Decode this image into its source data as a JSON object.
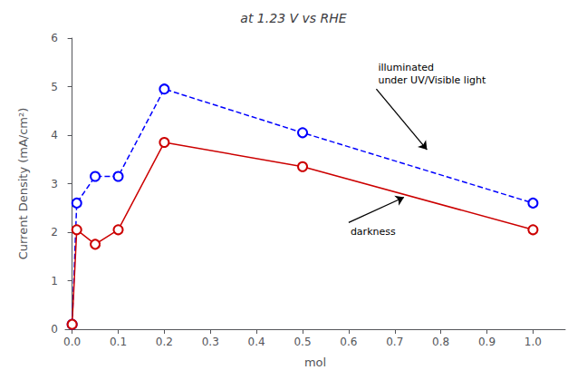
{
  "chart_data": {
    "type": "line",
    "title": "at 1.23 V vs RHE",
    "xlabel": "mol",
    "ylabel": "Current Density (mA/cm²)",
    "x": [
      0.0,
      0.01,
      0.05,
      0.1,
      0.2,
      0.5,
      1.0
    ],
    "series": [
      {
        "color": "#0000ff",
        "values": [
          0.1,
          2.6,
          3.15,
          3.15,
          4.95,
          4.05,
          2.6
        ],
        "line_style": "dashed",
        "marker": "circle"
      },
      {
        "color": "#cc0000",
        "values": [
          0.1,
          2.05,
          1.75,
          2.05,
          3.85,
          3.35,
          2.05
        ],
        "line_style": "solid",
        "marker": "circle"
      }
    ],
    "xlim": [
      -0.015,
      1.07
    ],
    "ylim": [
      0,
      6
    ],
    "xticks": [
      {
        "value": 0.0,
        "label": "0.0"
      },
      0.1,
      0.2,
      0.3,
      0.4,
      0.5,
      0.6,
      0.7,
      0.8,
      0.9,
      {
        "value": 1.0,
        "label": "1.0"
      }
    ],
    "yticks": [
      0,
      1,
      2,
      3,
      4,
      5,
      6
    ],
    "grid": false,
    "annotations": [
      {
        "text": "illuminated\nunder UV/Visible light",
        "xy": [
          0.77,
          3.7
        ],
        "xytext": [
          0.66,
          4.95
        ]
      },
      {
        "text": "darkness",
        "xy": [
          0.72,
          2.72
        ],
        "xytext": [
          0.6,
          2.2
        ]
      }
    ]
  }
}
